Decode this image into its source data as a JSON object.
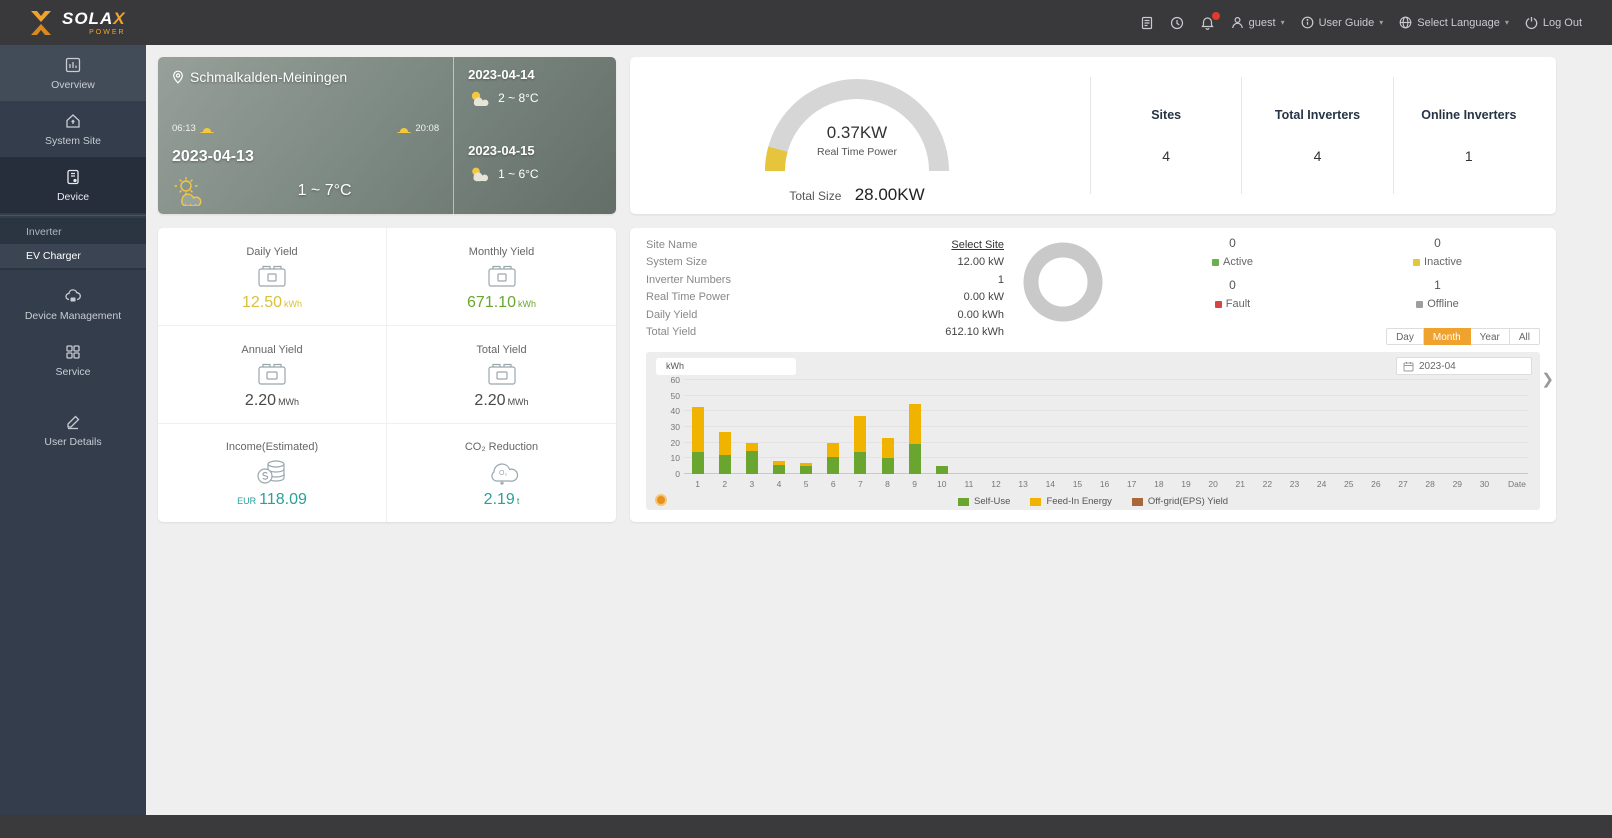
{
  "topbar": {
    "brand": "SOLA",
    "brand_x": "X",
    "brand_sub": "POWER",
    "user": "guest",
    "user_guide": "User Guide",
    "language": "Select Language",
    "logout": "Log Out"
  },
  "sidebar": {
    "items": [
      {
        "label": "Overview"
      },
      {
        "label": "System Site"
      },
      {
        "label": "Device"
      },
      {
        "label": "Device Management"
      },
      {
        "label": "Service"
      },
      {
        "label": "User Details"
      }
    ],
    "device_submenu": [
      {
        "label": "Inverter"
      },
      {
        "label": "EV Charger"
      }
    ]
  },
  "weather": {
    "location": "Schmalkalden-Meiningen",
    "today_date": "2023-04-13",
    "sunrise": "06:13",
    "sunset": "20:08",
    "today_temp": "1 ~ 7°C",
    "forecast": [
      {
        "date": "2023-04-14",
        "temp": "2 ~ 8°C"
      },
      {
        "date": "2023-04-15",
        "temp": "1 ~ 6°C"
      }
    ]
  },
  "power_card": {
    "real_time_power": "0.37KW",
    "real_time_label": "Real Time Power",
    "total_size_label": "Total Size",
    "total_size": "28.00KW",
    "gauge_track_color": "#d6d6d6",
    "gauge_fill_color": "#e6c53c",
    "stats": [
      {
        "label": "Sites",
        "value": "4"
      },
      {
        "label": "Total Inverters",
        "value": "4"
      },
      {
        "label": "Online Inverters",
        "value": "1"
      }
    ]
  },
  "yield_cards": [
    {
      "label": "Daily Yield",
      "value": "12.50",
      "unit": "kWh",
      "color": "#d9c13b"
    },
    {
      "label": "Monthly Yield",
      "value": "671.10",
      "unit": "kWh",
      "color": "#6aa62f"
    },
    {
      "label": "Annual Yield",
      "value": "2.20",
      "unit": "MWh",
      "color": "#4a4a4a"
    },
    {
      "label": "Total Yield",
      "value": "2.20",
      "unit": "MWh",
      "color": "#4a4a4a"
    },
    {
      "label": "Income(Estimated)",
      "prefix": "EUR",
      "value": "118.09",
      "color": "#2aa09a"
    },
    {
      "label": "CO₂ Reduction",
      "value": "2.19",
      "unit": "t",
      "color": "#2aa09a"
    }
  ],
  "site_panel": {
    "rows": [
      {
        "label": "Site Name",
        "value": "Select Site"
      },
      {
        "label": "System Size",
        "value": "12.00 kW"
      },
      {
        "label": "Inverter Numbers",
        "value": "1"
      },
      {
        "label": "Real Time Power",
        "value": "0.00 kW"
      },
      {
        "label": "Daily Yield",
        "value": "0.00 kWh"
      },
      {
        "label": "Total Yield",
        "value": "612.10 kWh"
      }
    ],
    "donut_color": "#c9c9c9",
    "status": [
      {
        "count": "0",
        "label": "Active",
        "color": "#6ab04c"
      },
      {
        "count": "0",
        "label": "Inactive",
        "color": "#e3c938"
      },
      {
        "count": "0",
        "label": "Fault",
        "color": "#d64541"
      },
      {
        "count": "1",
        "label": "Offline",
        "color": "#9e9e9e"
      }
    ],
    "range_buttons": [
      {
        "label": "Day"
      },
      {
        "label": "Month"
      },
      {
        "label": "Year"
      },
      {
        "label": "All"
      }
    ],
    "date_value": "2023-04"
  },
  "chart_data": {
    "type": "bar",
    "stacked": true,
    "unit": "kWh",
    "x": [
      "1",
      "2",
      "3",
      "4",
      "5",
      "6",
      "7",
      "8",
      "9",
      "10",
      "11",
      "12",
      "13",
      "14",
      "15",
      "16",
      "17",
      "18",
      "19",
      "20",
      "21",
      "22",
      "23",
      "24",
      "25",
      "26",
      "27",
      "28",
      "29",
      "30"
    ],
    "x_end_label": "Date",
    "ylim": [
      0,
      60
    ],
    "yticks": [
      0,
      10,
      20,
      30,
      40,
      50,
      60
    ],
    "series": [
      {
        "name": "Self-Use",
        "color": "#6aa62f",
        "values": [
          14,
          12,
          15,
          6,
          5,
          11,
          14,
          10,
          19,
          5,
          0,
          0,
          0,
          0,
          0,
          0,
          0,
          0,
          0,
          0,
          0,
          0,
          0,
          0,
          0,
          0,
          0,
          0,
          0,
          0
        ]
      },
      {
        "name": "Feed-In Energy",
        "color": "#f0b400",
        "values": [
          29,
          15,
          5,
          2,
          2,
          9,
          23,
          13,
          26,
          0,
          0,
          0,
          0,
          0,
          0,
          0,
          0,
          0,
          0,
          0,
          0,
          0,
          0,
          0,
          0,
          0,
          0,
          0,
          0,
          0
        ]
      },
      {
        "name": "Off-grid(EPS) Yield",
        "color": "#a9683a",
        "values": [
          0,
          0,
          0,
          0,
          0,
          0,
          0,
          0,
          0,
          0,
          0,
          0,
          0,
          0,
          0,
          0,
          0,
          0,
          0,
          0,
          0,
          0,
          0,
          0,
          0,
          0,
          0,
          0,
          0,
          0
        ]
      }
    ],
    "legend_position": "bottom-center"
  }
}
